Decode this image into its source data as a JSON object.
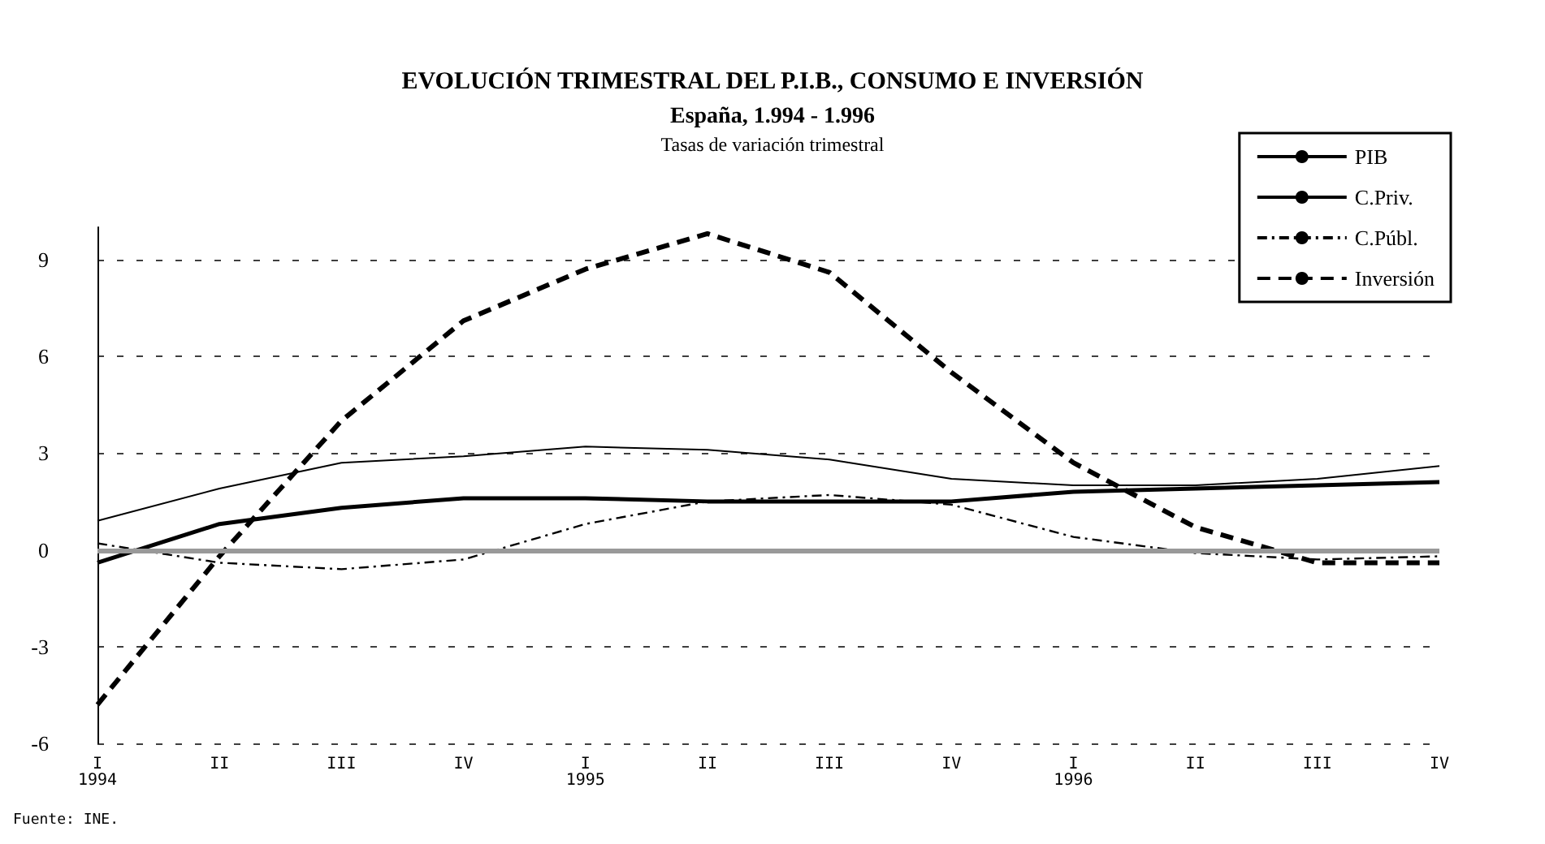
{
  "chart_data": {
    "type": "line",
    "title": "EVOLUCIÓN TRIMESTRAL DEL P.I.B., CONSUMO E INVERSIÓN\nEspaña, 1.994 - 1.996",
    "subtitle": "Tasas de variación trimestral",
    "categories": [
      "I\n1994",
      "II",
      "III",
      "IV",
      "I\n1995",
      "II",
      "III",
      "IV",
      "I\n1996",
      "II",
      "III",
      "IV"
    ],
    "series": [
      {
        "name": "PIB",
        "color": "#000000",
        "line_style": "solid",
        "values": [
          0.9,
          1.9,
          2.7,
          2.9,
          3.2,
          3.1,
          2.8,
          2.2,
          2.0,
          2.0,
          2.2,
          2.6
        ]
      },
      {
        "name": "C.Priv.",
        "color": "#000000",
        "line_style": "solid",
        "values": [
          -0.4,
          0.8,
          1.3,
          1.6,
          1.6,
          1.5,
          1.5,
          1.5,
          1.8,
          1.9,
          2.0,
          2.1
        ]
      },
      {
        "name": "C.Públ.",
        "color": "#000000",
        "line_style": "dotted",
        "values": [
          0.2,
          -0.4,
          -0.6,
          -0.3,
          0.8,
          1.5,
          1.7,
          1.4,
          0.4,
          -0.1,
          -0.3,
          -0.2
        ]
      },
      {
        "name": "Inversión",
        "color": "#000000",
        "line_style": "dashed",
        "values": [
          -4.8,
          -0.2,
          4.0,
          7.1,
          8.7,
          9.8,
          8.6,
          5.5,
          2.7,
          0.7,
          -0.4,
          -0.4
        ]
      }
    ],
    "ylim": [
      -6,
      10
    ],
    "yticks": [
      -6,
      -3,
      0,
      3,
      6,
      9
    ],
    "grid": "y",
    "legend": "top right",
    "marker": "none",
    "ref_lines": [
      {
        "axis": "y",
        "value": 0,
        "color": "#999999"
      }
    ],
    "annotations": [
      "Fuente: INE."
    ]
  }
}
